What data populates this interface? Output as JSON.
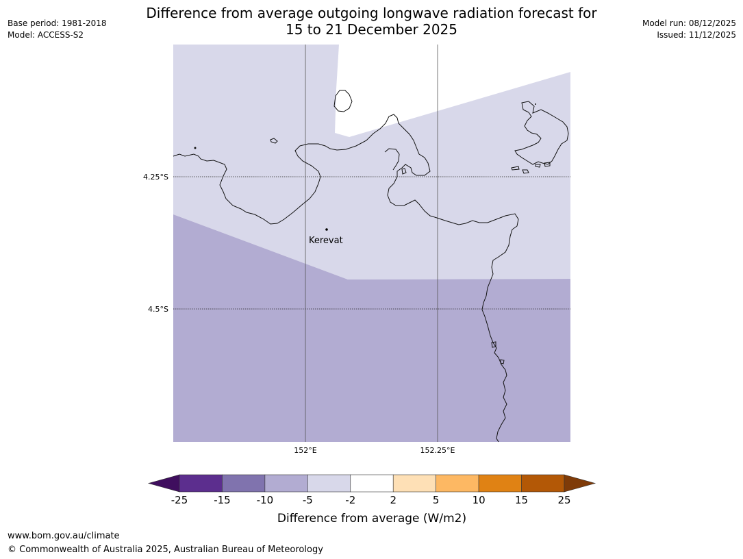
{
  "title_line1": "Difference from average outgoing longwave radiation forecast for",
  "title_line2": "15 to 21 December 2025",
  "meta_left": {
    "base_period": "Base period: 1981-2018",
    "model": "Model: ACCESS-S2"
  },
  "meta_right": {
    "model_run": "Model run: 08/12/2025",
    "issued": "Issued: 11/12/2025"
  },
  "map": {
    "lat_labels": [
      "4.25°S",
      "4.5°S"
    ],
    "lon_labels": [
      "152°E",
      "152.25°E"
    ],
    "place": "Kerevat",
    "fill_colors": {
      "light_lavender": "#d8d8ea",
      "lavender": "#b2acd2",
      "missing": "#ffffff"
    }
  },
  "colorbar": {
    "tick_labels": [
      "-25",
      "-15",
      "-10",
      "-5",
      "-2",
      "2",
      "5",
      "10",
      "15",
      "25"
    ],
    "colors": [
      "#3f0e5e",
      "#5c2e8e",
      "#8073ae",
      "#b2acd2",
      "#d8d8ea",
      "#ffffff",
      "#fee0b6",
      "#fdb863",
      "#e08214",
      "#b35806",
      "#7f3b08"
    ],
    "label": "Difference from average (W/m2)"
  },
  "footer": {
    "url": "www.bom.gov.au/climate",
    "copyright": "© Commonwealth of Australia 2025, Australian Bureau of Meteorology"
  }
}
